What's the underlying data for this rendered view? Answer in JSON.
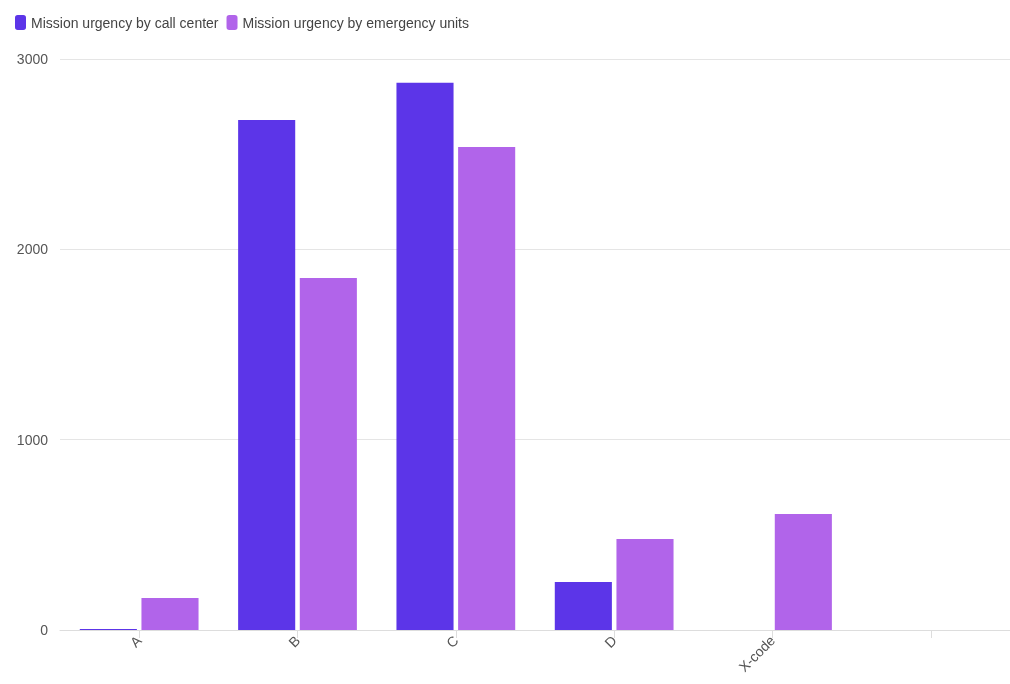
{
  "chart_data": {
    "type": "bar",
    "categories": [
      "A",
      "B",
      "C",
      "D",
      "X-code",
      null
    ],
    "series": [
      {
        "name": "Mission urgency by call center",
        "color": "#5c35e8",
        "values": [
          5,
          2680,
          2875,
          252,
          null,
          null
        ]
      },
      {
        "name": "Mission urgency by emergency units",
        "color": "#b164ea",
        "values": [
          168,
          1850,
          2538,
          478,
          610,
          null
        ]
      }
    ],
    "ylim": [
      0,
      3000
    ],
    "yticks": [
      0,
      1000,
      2000,
      3000
    ],
    "grid": "y",
    "legend": "top left"
  }
}
